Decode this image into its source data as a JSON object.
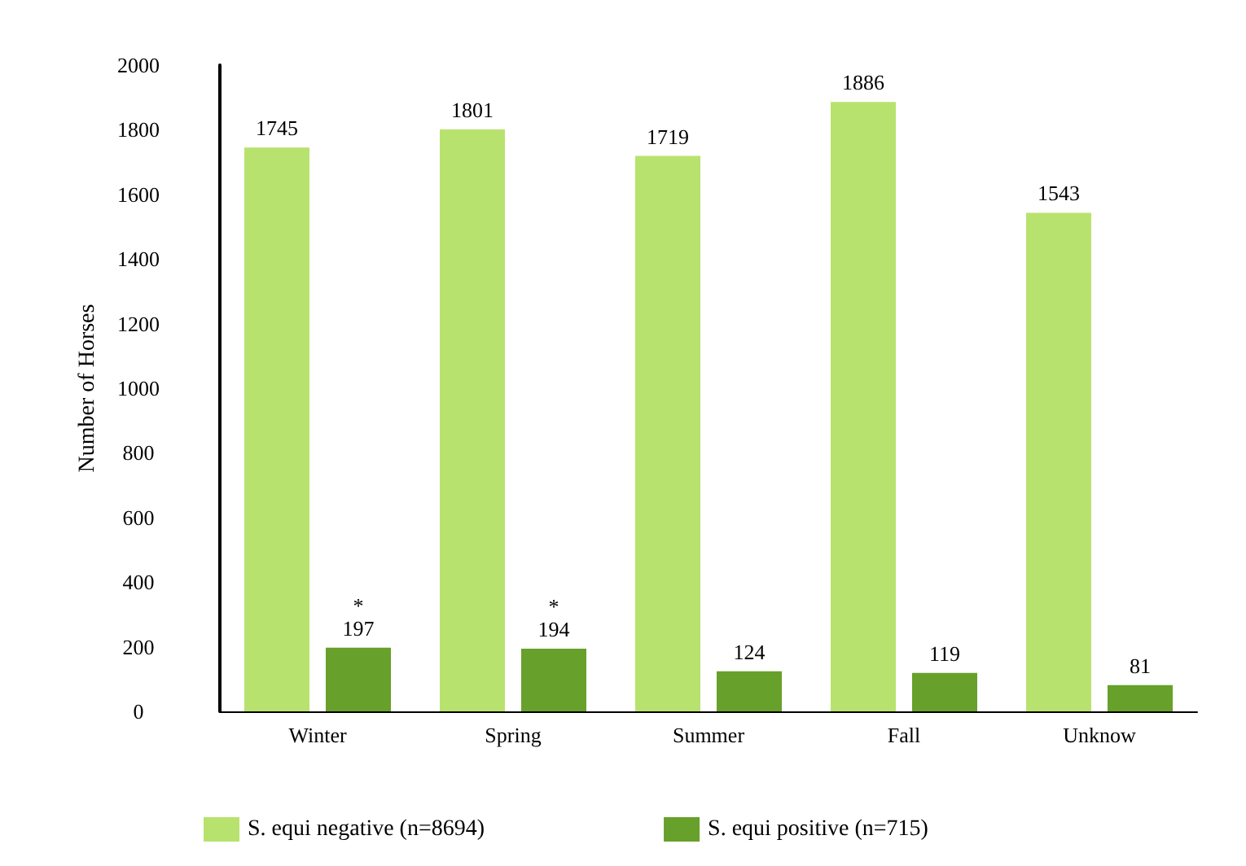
{
  "chart_data": {
    "type": "bar",
    "ylabel": "Number of Horses",
    "categories": [
      "Winter",
      "Spring",
      "Summer",
      "Fall",
      "Unknow"
    ],
    "series": [
      {
        "name": "S. equi negative (n=8694)",
        "color": "#b8e26e",
        "values": [
          1745,
          1801,
          1719,
          1886,
          1543
        ]
      },
      {
        "name": "S. equi positive (n=715)",
        "color": "#67a02a",
        "values": [
          197,
          194,
          124,
          119,
          81
        ]
      }
    ],
    "ylim": [
      0,
      2000
    ],
    "yticks": [
      0,
      200,
      400,
      600,
      800,
      1000,
      1200,
      1400,
      1600,
      1800,
      2000
    ],
    "grid": false,
    "legend": "bottom",
    "data_labels": true,
    "annotations": [
      {
        "text": "*",
        "x": "Winter",
        "y": 197
      },
      {
        "text": "*",
        "x": "Spring",
        "y": 194
      }
    ]
  }
}
